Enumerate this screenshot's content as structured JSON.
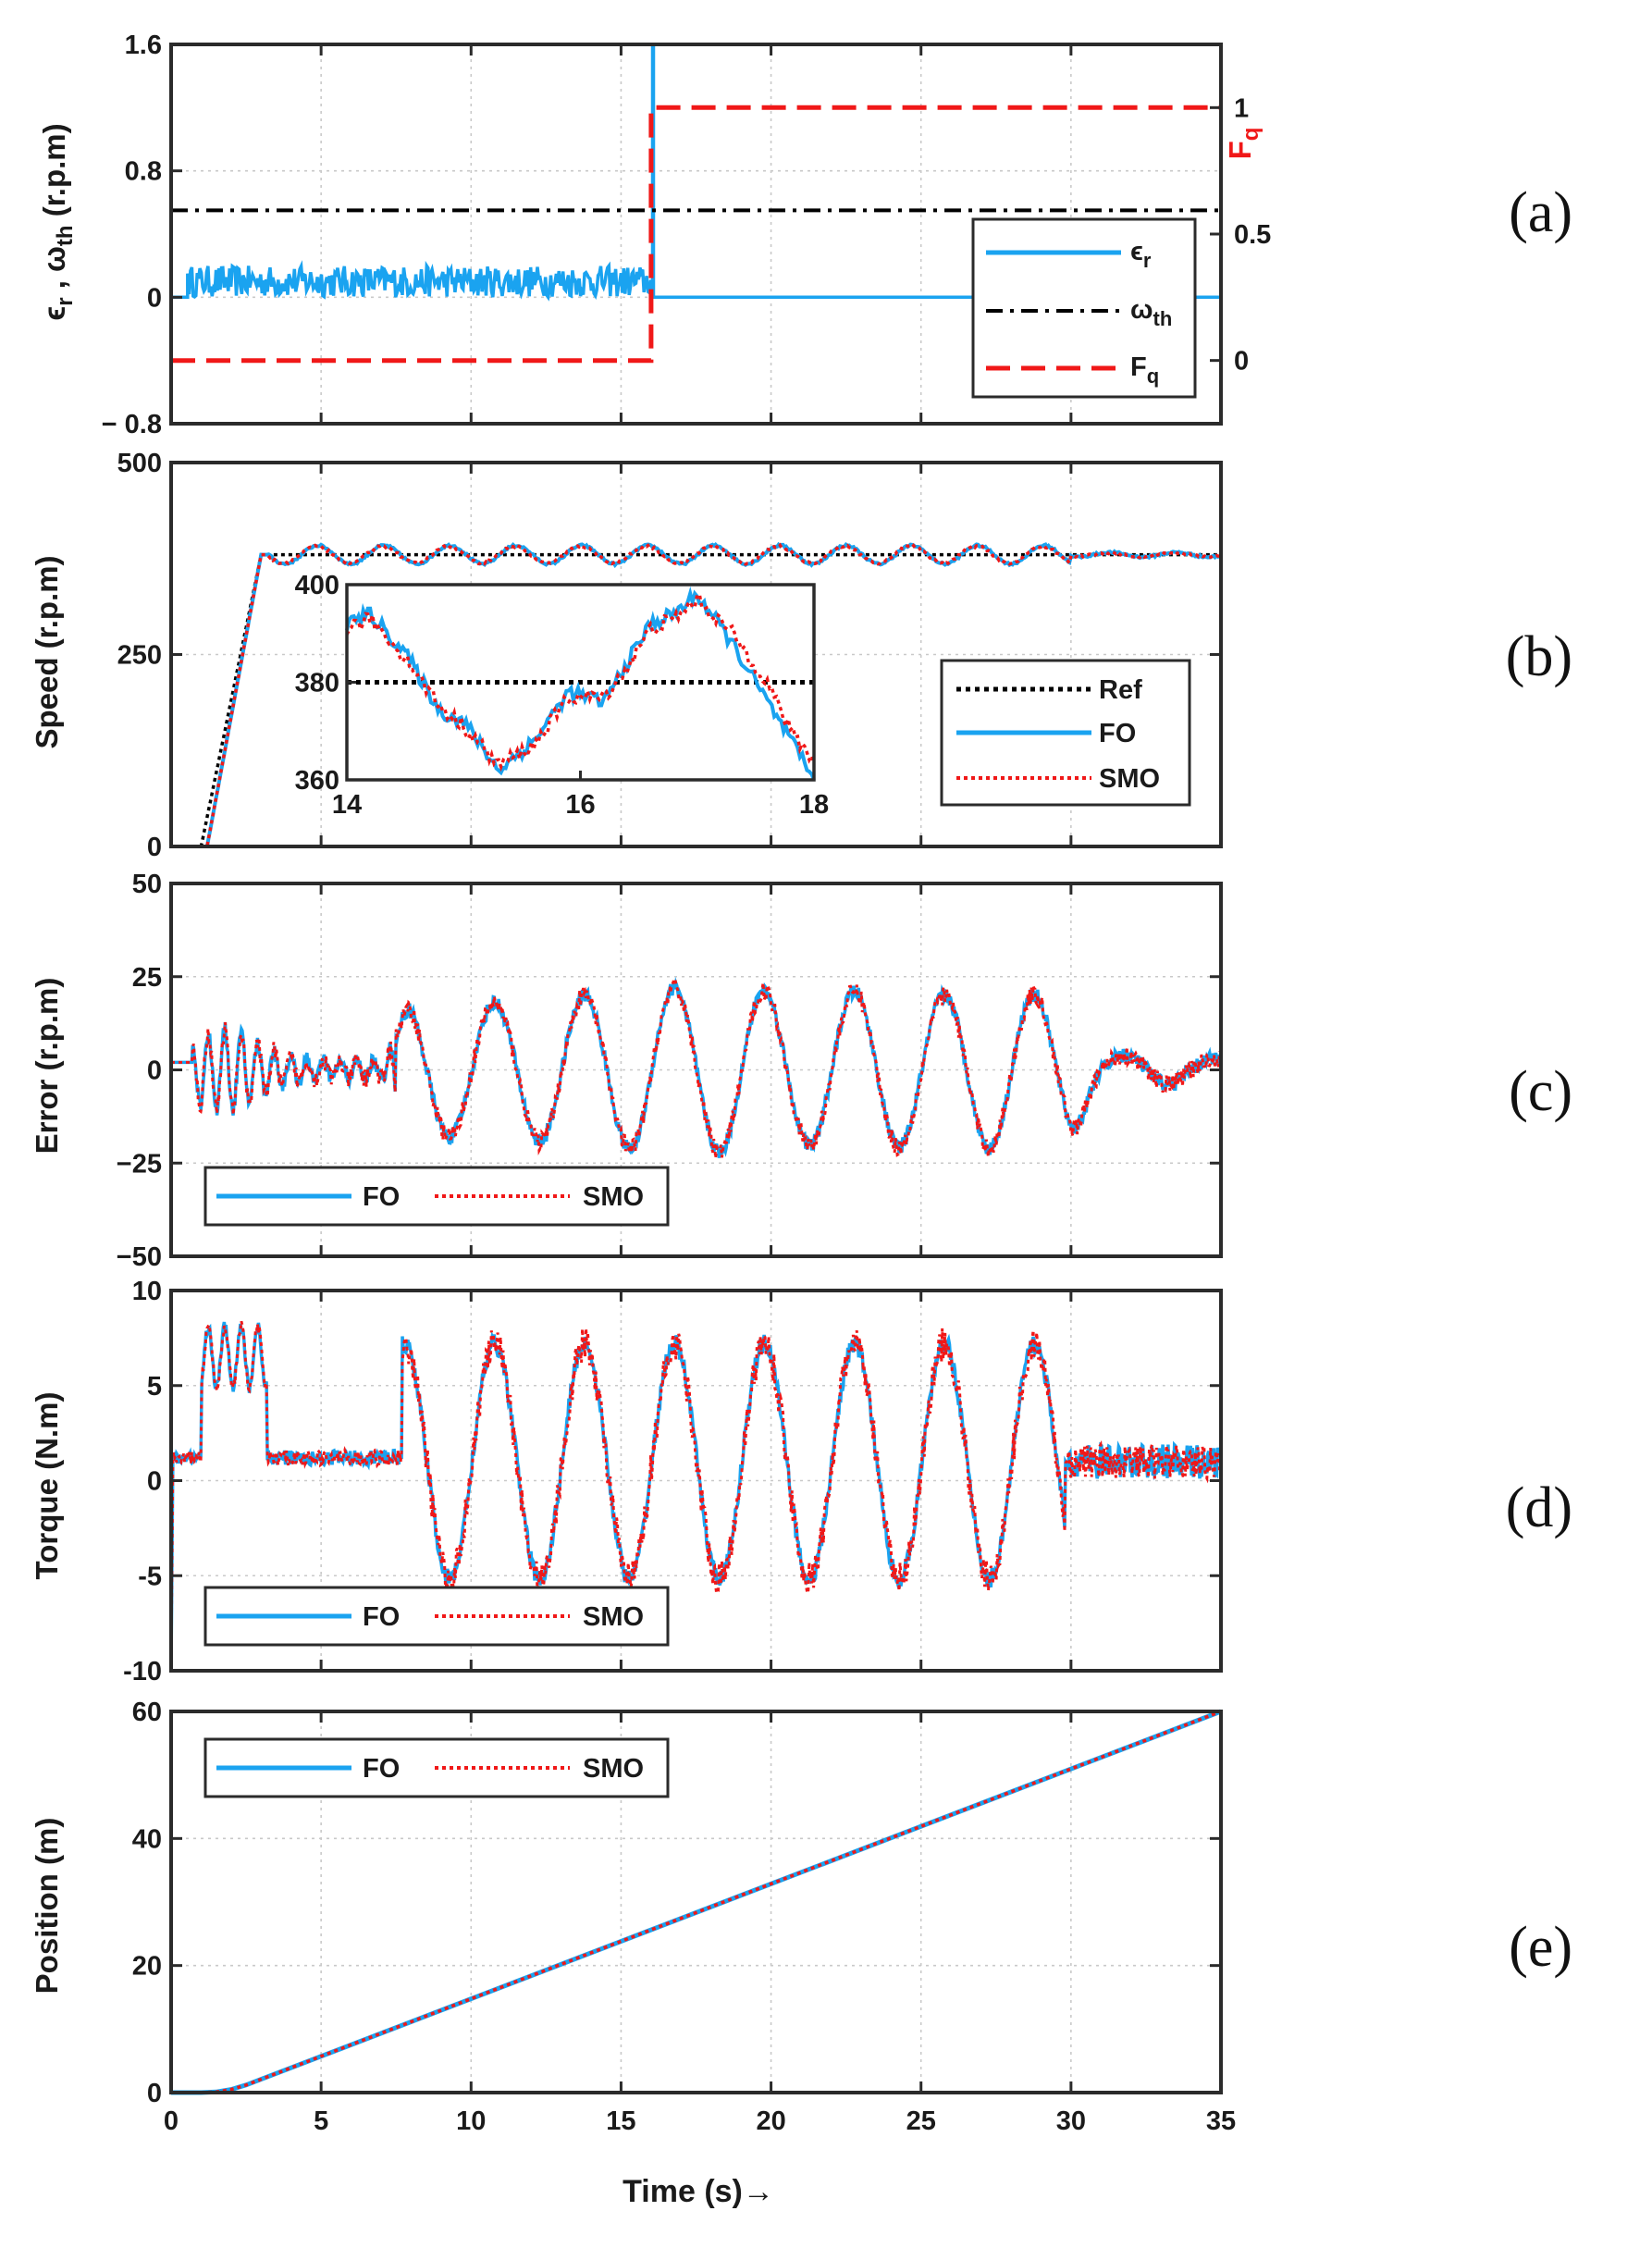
{
  "colors": {
    "fo": "#1aa3f0",
    "smo": "#f01818",
    "ref": "#000000",
    "threshold": "#000000",
    "fq": "#f01818",
    "axis": "#2b2b2b",
    "grid": "#c9c9c9"
  },
  "figure": {
    "xlabel": "Time (s)→",
    "xticks": [
      0,
      5,
      10,
      15,
      20,
      25,
      30,
      35
    ],
    "xlim": [
      0,
      35
    ]
  },
  "panel_labels": [
    "(a)",
    "(b)",
    "(c)",
    "(d)",
    "(e)"
  ],
  "chart_data": [
    {
      "id": "a",
      "type": "line",
      "ylabel_parts": [
        "ϵ",
        "r",
        " , ω",
        "th",
        " (r.p.m)"
      ],
      "ylim": [
        -0.8,
        1.6
      ],
      "yticks": [
        -0.8,
        0,
        0.8,
        1.6
      ],
      "ytick_labels": [
        "− 0.8",
        "0",
        "0.8",
        "1.6"
      ],
      "y2label": [
        "F",
        "q"
      ],
      "y2lim": [
        -0.25,
        1.25
      ],
      "y2ticks": [
        0,
        0.5,
        1
      ],
      "y2tick_labels": [
        "0",
        "0.5",
        "1"
      ],
      "series": [
        {
          "name": "ϵ_r",
          "legend": [
            "ϵ",
            "r"
          ],
          "style": "solid",
          "color": "fo",
          "axis": "left",
          "x": [
            0,
            0.55,
            0.55,
            16.0,
            16.0,
            16.05,
            16.05,
            35
          ],
          "y": [
            0,
            0,
            0.15,
            0.15,
            0.0,
            1.6,
            0,
            0
          ],
          "noise_band": [
            0.6,
            16.0,
            0.0,
            0.2
          ]
        },
        {
          "name": "ω_th",
          "legend": [
            "ω",
            "th"
          ],
          "style": "dashdot",
          "color": "threshold",
          "axis": "left",
          "x": [
            0,
            35
          ],
          "y": [
            0.55,
            0.55
          ]
        },
        {
          "name": "F_q",
          "legend": [
            "F",
            "q"
          ],
          "style": "dashed",
          "color": "fq",
          "axis": "right",
          "x": [
            0,
            16.0,
            16.0,
            35
          ],
          "y": [
            0,
            0,
            1,
            1
          ]
        }
      ],
      "legend_position": "bottom-right"
    },
    {
      "id": "b",
      "type": "line",
      "ylabel": "Speed (r.p.m)",
      "ylim": [
        0,
        500
      ],
      "yticks": [
        0,
        250,
        500
      ],
      "ytick_labels": [
        "0",
        "250",
        "500"
      ],
      "series": [
        {
          "name": "Ref",
          "style": "dotted",
          "color": "ref",
          "x": [
            0,
            1,
            3,
            35
          ],
          "y": [
            0,
            0,
            380,
            380
          ]
        },
        {
          "name": "FO",
          "style": "solid",
          "color": "fo",
          "x": [
            0,
            1.2,
            3.0,
            35
          ],
          "y": [
            0,
            0,
            380,
            380
          ],
          "ripple_amp": 12
        },
        {
          "name": "SMO",
          "style": "dotted",
          "color": "smo",
          "x": [
            0,
            1.2,
            3.0,
            35
          ],
          "y": [
            0,
            0,
            380,
            380
          ],
          "ripple_amp": 11
        }
      ],
      "legend_position": "bottom-right",
      "inset": {
        "xlim": [
          14,
          18
        ],
        "ylim": [
          360,
          400
        ],
        "xticks": [
          14,
          16,
          18
        ],
        "yticks": [
          360,
          380,
          400
        ],
        "ref": 380,
        "fo": {
          "x": [
            14.0,
            14.2,
            14.5,
            14.8,
            15.0,
            15.3,
            15.6,
            15.9,
            16.2,
            16.4,
            16.6,
            16.8,
            17.0,
            17.3,
            17.6,
            17.8,
            18.0
          ],
          "y": [
            392,
            394,
            386,
            374,
            372,
            362,
            368,
            378,
            376,
            384,
            392,
            394,
            398,
            388,
            376,
            368,
            360
          ]
        },
        "smo": {
          "x": [
            14.0,
            14.2,
            14.5,
            14.8,
            15.0,
            15.3,
            15.6,
            15.9,
            16.2,
            16.4,
            16.6,
            16.8,
            17.0,
            17.3,
            17.6,
            17.8,
            18.0
          ],
          "y": [
            391,
            393,
            385,
            375,
            371,
            363,
            367,
            377,
            377,
            383,
            391,
            393,
            397,
            390,
            380,
            370,
            364
          ]
        }
      }
    },
    {
      "id": "c",
      "type": "line",
      "ylabel": "Error (r.p.m)",
      "ylim": [
        -50,
        50
      ],
      "yticks": [
        -50,
        -25,
        0,
        25,
        50
      ],
      "ytick_labels": [
        "−50",
        "−25",
        "0",
        "25",
        "50"
      ],
      "series": [
        {
          "name": "FO",
          "style": "solid",
          "color": "fo"
        },
        {
          "name": "SMO",
          "style": "dotted",
          "color": "smo"
        }
      ],
      "envelope": {
        "x": [
          0,
          1,
          2,
          3,
          4,
          5,
          6,
          7,
          8,
          9,
          10,
          11,
          12,
          13,
          14,
          15,
          16,
          17,
          18,
          19,
          20,
          21,
          22,
          23,
          24,
          25,
          26,
          27,
          28,
          29,
          30,
          31,
          32,
          33,
          34,
          35
        ],
        "amp": [
          0,
          12,
          14,
          8,
          4,
          3,
          3,
          3,
          18,
          18,
          18,
          18,
          19,
          20,
          20,
          21,
          22,
          22,
          22,
          22,
          21,
          20,
          21,
          21,
          21,
          20,
          20,
          21,
          21,
          20,
          18,
          4,
          4,
          4,
          3,
          3
        ]
      },
      "legend_position": "bottom-left"
    },
    {
      "id": "d",
      "type": "line",
      "ylabel": "Torque (N.m)",
      "ylim": [
        -10,
        10
      ],
      "yticks": [
        -10,
        -5,
        0,
        5,
        10
      ],
      "ytick_labels": [
        "-10",
        "-5",
        "0",
        "5",
        "10"
      ],
      "series": [
        {
          "name": "FO",
          "style": "solid",
          "color": "fo"
        },
        {
          "name": "SMO",
          "style": "dotted",
          "color": "smo"
        }
      ],
      "envelope": {
        "x": [
          0,
          1,
          2,
          3,
          4,
          5,
          6,
          7,
          8,
          9,
          10,
          11,
          12,
          13,
          14,
          15,
          16,
          17,
          18,
          19,
          20,
          21,
          22,
          23,
          24,
          25,
          26,
          27,
          28,
          29,
          30,
          31,
          32,
          33,
          34,
          35
        ],
        "base": [
          1.2,
          1.2,
          6.5,
          6.5,
          1.2,
          1.2,
          1.2,
          1.0,
          1.0,
          1.0,
          1.0,
          1.0,
          1.0,
          1.0,
          1.0,
          1.0,
          1.0,
          1.0,
          1.0,
          1.0,
          1.0,
          1.0,
          1.0,
          1.0,
          1.0,
          1.0,
          1.0,
          1.0,
          1.0,
          1.0,
          1.0,
          1.0,
          1.0,
          1.0,
          1.0,
          1.0
        ]
      },
      "legend_position": "bottom-left"
    },
    {
      "id": "e",
      "type": "line",
      "ylabel": "Position (m)",
      "ylim": [
        0,
        60
      ],
      "yticks": [
        0,
        20,
        40,
        60
      ],
      "ytick_labels": [
        "0",
        "20",
        "40",
        "60"
      ],
      "series": [
        {
          "name": "FO",
          "style": "solid",
          "color": "fo",
          "x": [
            0,
            1,
            1.5,
            2,
            2.5,
            3,
            35
          ],
          "y": [
            0,
            0,
            0.1,
            0.5,
            1.2,
            2.1,
            60
          ]
        },
        {
          "name": "SMO",
          "style": "dotted",
          "color": "smo",
          "x": [
            0,
            1,
            1.5,
            2,
            2.5,
            3,
            35
          ],
          "y": [
            0,
            0,
            0.1,
            0.5,
            1.2,
            2.1,
            60
          ]
        }
      ],
      "legend_position": "top-left"
    }
  ]
}
